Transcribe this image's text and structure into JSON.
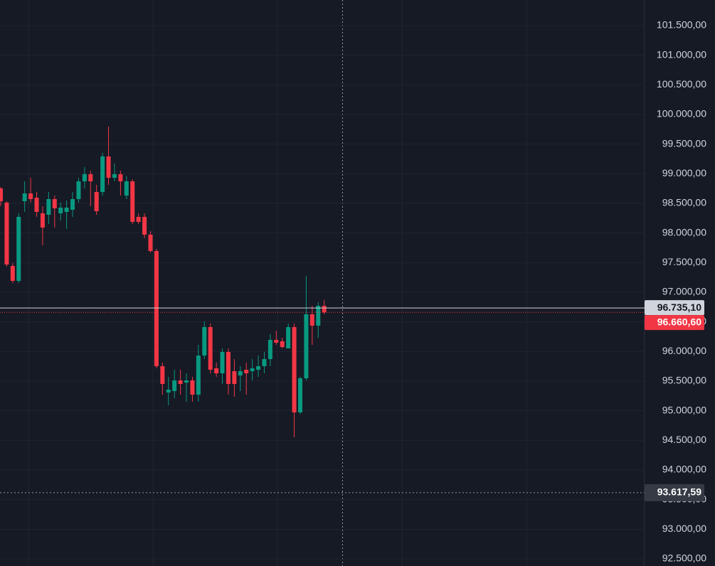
{
  "chart_data": {
    "type": "candlestick",
    "open": [
      98752,
      98512,
      97444,
      97192,
      98536,
      98668,
      98596,
      98332,
      98308,
      98572,
      98332,
      98356,
      98392,
      98572,
      98872,
      98992,
      98692,
      98692,
      99292,
      98932,
      98992,
      98632,
      98872,
      98272,
      98272,
      97972,
      97696,
      95752,
      95308,
      95332,
      95512,
      95476,
      95512,
      95272,
      95932,
      96412,
      95716,
      95632,
      95992,
      95668,
      95596,
      95692,
      95668,
      95692,
      95752,
      95872,
      96196,
      96172,
      96052,
      96412,
      94972,
      95548,
      96628,
      96436,
      96772
    ],
    "high": [
      98776,
      98536,
      97492,
      98332,
      98872,
      98932,
      98692,
      98452,
      98692,
      98632,
      98512,
      98548,
      98692,
      98932,
      99112,
      99052,
      98812,
      99352,
      99796,
      99172,
      99052,
      98956,
      98908,
      98332,
      98332,
      98032,
      97732,
      95812,
      95572,
      95692,
      95692,
      95632,
      95572,
      96112,
      96508,
      96472,
      95812,
      96052,
      96052,
      95872,
      95752,
      95812,
      95872,
      95932,
      95992,
      96292,
      96352,
      96232,
      96472,
      96472,
      95572,
      97276,
      96772,
      96832,
      96868
    ],
    "low": [
      98452,
      97432,
      97156,
      97156,
      98356,
      98512,
      98272,
      97792,
      98152,
      98092,
      98212,
      98068,
      98272,
      98512,
      98752,
      98452,
      98308,
      98632,
      98812,
      98872,
      98632,
      98572,
      98152,
      98152,
      97912,
      97672,
      95716,
      95272,
      95092,
      95212,
      95272,
      95152,
      95152,
      95152,
      95872,
      95632,
      95572,
      95452,
      95272,
      95236,
      95332,
      95272,
      95512,
      95572,
      95632,
      95752,
      96112,
      96052,
      96052,
      94552,
      94940,
      95512,
      96112,
      96232,
      96628
    ],
    "close": [
      98536,
      97468,
      97192,
      98272,
      98668,
      98572,
      98356,
      98092,
      98572,
      98416,
      98428,
      98428,
      98572,
      98872,
      98992,
      98872,
      98368,
      99292,
      98932,
      98992,
      98872,
      98872,
      98188,
      98188,
      97972,
      97696,
      95752,
      95452,
      95356,
      95512,
      95452,
      95512,
      95272,
      95932,
      96412,
      95692,
      95632,
      95992,
      95452,
      95452,
      95668,
      95632,
      95716,
      95752,
      95872,
      96196,
      96148,
      96076,
      96412,
      94972,
      95548,
      96628,
      96436,
      96772,
      96660.6
    ],
    "up_color": "#089981",
    "down_color": "#f23645",
    "ylim": [
      92380,
      101932
    ],
    "yticks": [
      {
        "value": 92500,
        "label": "92.500,00"
      },
      {
        "value": 93000,
        "label": "93.000,00"
      },
      {
        "value": 93500,
        "label": "93.500,00"
      },
      {
        "value": 94000,
        "label": "94.000,00"
      },
      {
        "value": 94500,
        "label": "94.500,00"
      },
      {
        "value": 95000,
        "label": "95.000,00"
      },
      {
        "value": 95500,
        "label": "95.500,00"
      },
      {
        "value": 96000,
        "label": "96.000,00"
      },
      {
        "value": 96500,
        "label": "96.500,00"
      },
      {
        "value": 97000,
        "label": "97.000,00"
      },
      {
        "value": 97500,
        "label": "97.500,00"
      },
      {
        "value": 98000,
        "label": "98.000,00"
      },
      {
        "value": 98500,
        "label": "98.500,00"
      },
      {
        "value": 99000,
        "label": "99.000,00"
      },
      {
        "value": 99500,
        "label": "99.500,00"
      },
      {
        "value": 100000,
        "label": "100.000,00"
      },
      {
        "value": 100500,
        "label": "100.500,00"
      },
      {
        "value": 101000,
        "label": "101.000,00"
      },
      {
        "value": 101500,
        "label": "101.500,00"
      }
    ],
    "price_lines": [
      {
        "value": 96735.1,
        "label": "96.735,10",
        "color": "#d1d4dc"
      },
      {
        "value": 96660.6,
        "label": "96.660,60",
        "color": "#f23645"
      }
    ],
    "crosshair": {
      "value": 93617.59,
      "label": "93.617,59"
    },
    "grid": true
  }
}
